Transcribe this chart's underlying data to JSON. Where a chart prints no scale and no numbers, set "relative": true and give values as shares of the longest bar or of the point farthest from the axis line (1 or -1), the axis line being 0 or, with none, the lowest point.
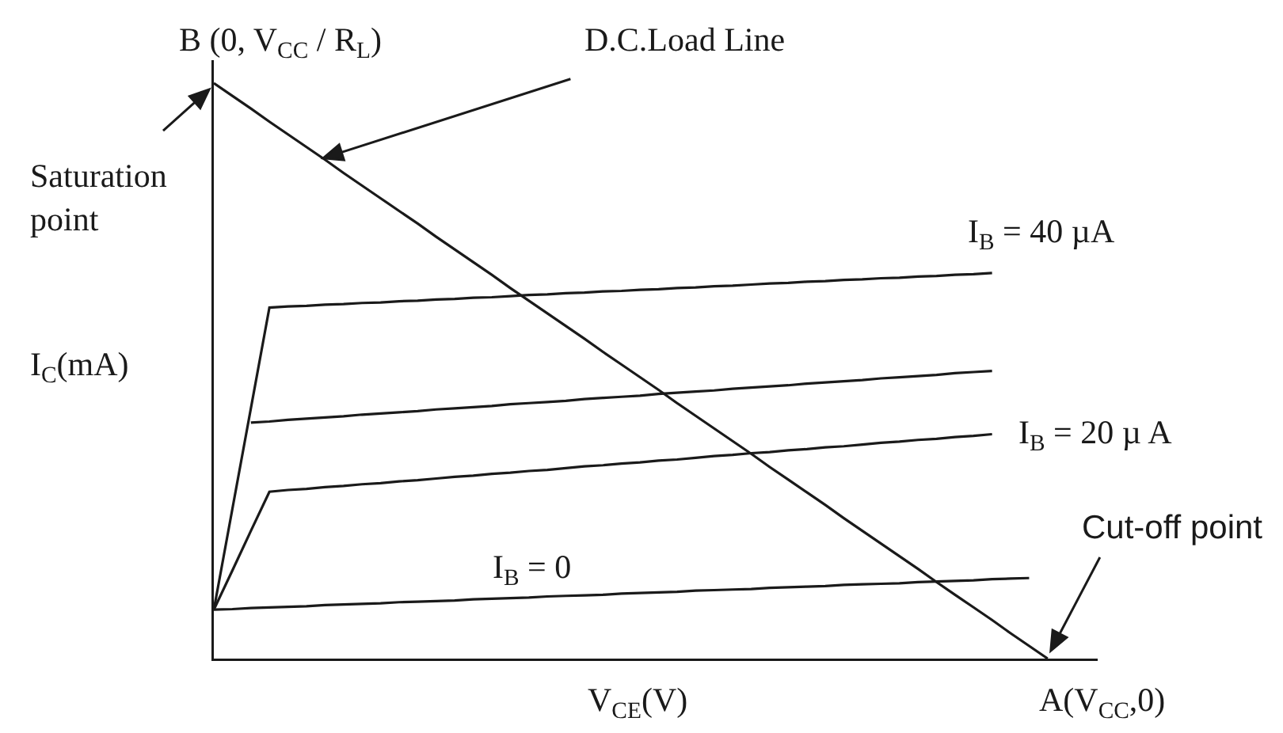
{
  "chart_data": {
    "type": "line",
    "relative": true,
    "xlabel": "V$_{CE}$(V)",
    "ylabel": "I$_{C}$(mA)",
    "categories": [
      null,
      null,
      null,
      null,
      null,
      null,
      null,
      null,
      null,
      null,
      null,
      null,
      null,
      null,
      null,
      null,
      null,
      null,
      null,
      null,
      null,
      null,
      null,
      null,
      null,
      null,
      null,
      null,
      null,
      null,
      null,
      null,
      null,
      null,
      null,
      null,
      null,
      null,
      null,
      null,
      null,
      null,
      null,
      null,
      null,
      null
    ],
    "series": [
      {
        "color": "#1a1a1a",
        "values": [
          1,
          0.978,
          0.956,
          0.933,
          0.911,
          0.889,
          0.867,
          0.844,
          0.822,
          0.8,
          0.778,
          0.756,
          0.733,
          0.711,
          0.689,
          0.667,
          0.644,
          0.622,
          0.6,
          0.578,
          0.556,
          0.533,
          0.511,
          0.489,
          0.467,
          0.444,
          0.422,
          0.4,
          0.378,
          0.356,
          0.333,
          0.311,
          0.289,
          0.267,
          0.244,
          0.222,
          0.2,
          0.178,
          0.156,
          0.133,
          0.111,
          0.089,
          0.067,
          0.044,
          0.022,
          0
        ]
      },
      {
        "name": "I$_{B}$ = 40 µA",
        "color": "#1a1a1a",
        "values": [
          0.085,
          0.26,
          0.435,
          0.61,
          0.612,
          0.613,
          0.615,
          0.616,
          0.618,
          0.619,
          0.621,
          0.622,
          0.624,
          0.625,
          0.627,
          0.628,
          0.63,
          0.632,
          0.633,
          0.635,
          0.636,
          0.638,
          0.639,
          0.641,
          0.642,
          0.644,
          0.645,
          0.647,
          0.648,
          0.65,
          0.652,
          0.653,
          0.655,
          0.656,
          0.658,
          0.659,
          0.661,
          0.662,
          0.664,
          0.665,
          0.667,
          0.668,
          0.67,
          null,
          null,
          null
        ]
      },
      {
        "color": "#1a1a1a",
        "values": [
          null,
          null,
          0.41,
          0.412,
          0.415,
          0.417,
          0.419,
          0.421,
          0.424,
          0.426,
          0.428,
          0.43,
          0.433,
          0.435,
          0.437,
          0.439,
          0.442,
          0.444,
          0.446,
          0.448,
          0.451,
          0.453,
          0.455,
          0.457,
          0.46,
          0.462,
          0.464,
          0.466,
          0.469,
          0.471,
          0.473,
          0.475,
          0.478,
          0.48,
          0.482,
          0.484,
          0.487,
          0.489,
          0.491,
          0.493,
          0.496,
          0.498,
          0.5,
          null,
          null,
          null
        ]
      },
      {
        "name": "I$_{B}$ = 20 µ A",
        "color": "#1a1a1a",
        "values": [
          0.085,
          0.153,
          0.222,
          0.29,
          0.293,
          0.295,
          0.298,
          0.3,
          0.303,
          0.305,
          0.308,
          0.31,
          0.313,
          0.316,
          0.318,
          0.321,
          0.323,
          0.326,
          0.328,
          0.331,
          0.334,
          0.336,
          0.339,
          0.341,
          0.344,
          0.346,
          0.349,
          0.352,
          0.354,
          0.357,
          0.359,
          0.362,
          0.364,
          0.367,
          0.369,
          0.372,
          0.375,
          0.377,
          0.38,
          0.382,
          0.385,
          0.387,
          0.39,
          null,
          null,
          null
        ]
      },
      {
        "name": "I$_{B}$ = 0",
        "color": "#1a1a1a",
        "values": [
          0.085,
          0.086,
          0.088,
          0.089,
          0.09,
          0.091,
          0.093,
          0.094,
          0.095,
          0.096,
          0.098,
          0.099,
          0.1,
          0.101,
          0.103,
          0.104,
          0.105,
          0.106,
          0.108,
          0.109,
          0.11,
          0.111,
          0.113,
          0.114,
          0.115,
          0.116,
          0.118,
          0.119,
          0.12,
          0.121,
          0.123,
          0.124,
          0.125,
          0.126,
          0.128,
          0.129,
          0.13,
          0.131,
          0.133,
          0.134,
          0.135,
          0.136,
          0.138,
          0.139,
          0.14,
          null
        ]
      }
    ],
    "annotations": [
      "B (0, V$_{CC}$ / R$_{L}$)",
      "D.C.Load Line",
      "Saturation\npoint",
      "Cut-off point",
      "A(V$_{CC}$,0)"
    ],
    "marker": "none",
    "line_style": "solid",
    "legend": false
  }
}
